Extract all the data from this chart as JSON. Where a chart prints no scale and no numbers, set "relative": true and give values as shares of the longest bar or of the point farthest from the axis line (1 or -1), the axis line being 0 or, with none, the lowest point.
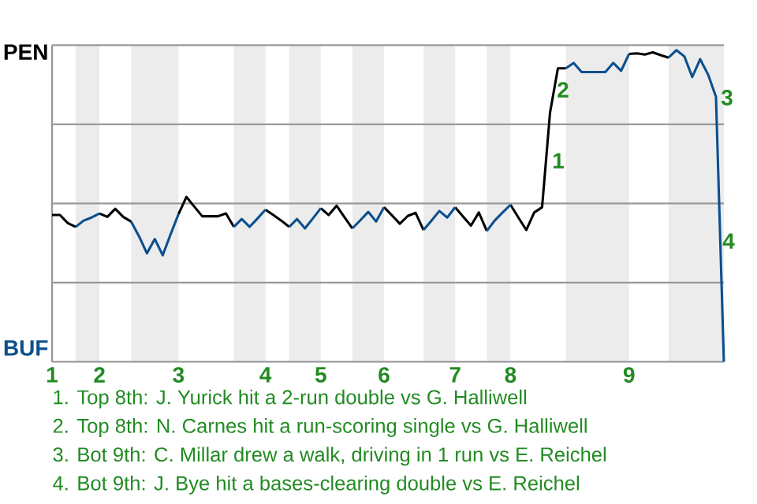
{
  "chart_data": {
    "type": "line",
    "relative": true,
    "categories": [
      "1",
      null,
      null,
      null,
      null,
      null,
      "2",
      null,
      null,
      null,
      null,
      null,
      null,
      null,
      null,
      null,
      "3",
      null,
      null,
      null,
      null,
      null,
      null,
      null,
      null,
      null,
      null,
      "4",
      null,
      null,
      null,
      null,
      null,
      null,
      "5",
      null,
      null,
      null,
      null,
      null,
      null,
      null,
      "6",
      null,
      null,
      null,
      null,
      null,
      null,
      null,
      null,
      "7",
      null,
      null,
      null,
      null,
      null,
      null,
      "8",
      null,
      null,
      null,
      null,
      null,
      null,
      null,
      null,
      null,
      null,
      null,
      null,
      null,
      null,
      "9",
      null,
      null,
      null,
      null,
      null,
      null,
      null,
      null,
      null,
      null,
      null,
      null
    ],
    "series": [
      {
        "color": "#000000",
        "values": [
          0.471,
          0.471,
          0.445,
          0.433,
          null,
          null,
          0.476,
          0.465,
          0.491,
          0.465,
          0.45,
          null,
          null,
          null,
          null,
          null,
          0.474,
          0.529,
          0.498,
          0.467,
          0.467,
          0.467,
          0.476,
          0.433,
          null,
          null,
          null,
          0.488,
          0.471,
          0.453,
          0.433,
          null,
          null,
          null,
          0.493,
          0.471,
          0.501,
          0.464,
          0.428,
          null,
          null,
          null,
          0.496,
          0.47,
          0.443,
          0.468,
          0.478,
          0.423,
          null,
          null,
          null,
          0.496,
          0.466,
          0.437,
          0.479,
          0.42,
          null,
          null,
          0.504,
          0.463,
          0.423,
          0.479,
          0.496,
          0.799,
          0.942,
          0.942,
          null,
          null,
          null,
          null,
          null,
          null,
          null,
          0.988,
          0.99,
          0.986,
          0.993,
          0.984,
          0.976,
          null,
          null,
          null,
          null,
          null,
          null,
          null
        ]
      },
      {
        "color": "#0b4f8e",
        "values": [
          null,
          null,
          null,
          0.433,
          0.453,
          0.463,
          0.476,
          null,
          null,
          null,
          0.45,
          0.403,
          0.348,
          0.394,
          0.342,
          0.409,
          0.474,
          null,
          null,
          null,
          null,
          null,
          null,
          0.433,
          0.458,
          0.433,
          0.46,
          0.488,
          null,
          null,
          0.433,
          0.458,
          0.428,
          0.46,
          0.493,
          null,
          null,
          null,
          0.428,
          0.454,
          0.481,
          0.45,
          0.496,
          null,
          null,
          null,
          null,
          0.423,
          0.453,
          0.484,
          0.463,
          0.496,
          null,
          null,
          null,
          0.42,
          0.453,
          0.479,
          0.504,
          null,
          null,
          null,
          null,
          null,
          null,
          0.942,
          0.959,
          0.93,
          0.93,
          0.93,
          0.93,
          0.959,
          0.934,
          0.988,
          null,
          null,
          null,
          null,
          0.976,
          1,
          0.98,
          0.914,
          0.971,
          0.922,
          0.85,
          0
        ]
      }
    ],
    "grid": "y",
    "annotations": [
      "PEN",
      "BUF",
      "1",
      "2",
      "3",
      "4",
      "1. Top 8th: J. Yurick hit a 2-run double vs G. Halliwell",
      "2. Top 8th: N. Carnes hit a run-scoring single vs G. Halliwell",
      "3. Bot 9th: C. Millar drew a walk, driving in 1 run vs E. Reichel",
      "4. Bot 9th: J. Bye hit a bases-clearing double vs E. Reichel"
    ]
  }
}
